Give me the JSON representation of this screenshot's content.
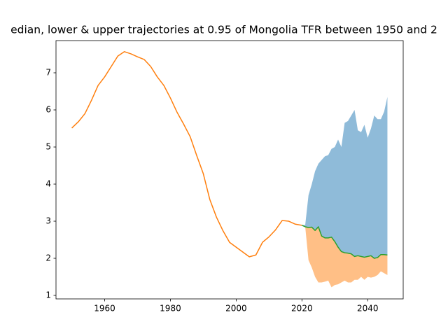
{
  "chart_data": {
    "type": "line",
    "title": "edian, lower & upper trajectories at 0.95 of Mongolia TFR between 1950 and 2",
    "x": [
      1950,
      1952,
      1954,
      1956,
      1958,
      1960,
      1962,
      1964,
      1966,
      1968,
      1970,
      1972,
      1974,
      1976,
      1978,
      1980,
      1982,
      1984,
      1986,
      1988,
      1990,
      1992,
      1994,
      1996,
      1998,
      2000,
      2002,
      2004,
      2006,
      2008,
      2010,
      2012,
      2014,
      2016,
      2018,
      2020,
      2021,
      2022,
      2023,
      2024,
      2025,
      2026,
      2027,
      2028,
      2029,
      2030,
      2031,
      2032,
      2033,
      2034,
      2035,
      2036,
      2037,
      2038,
      2039,
      2040,
      2041,
      2042,
      2043,
      2044,
      2045,
      2046
    ],
    "series": [
      {
        "color": "#1f77b4",
        "fill": true,
        "opacity": 0.5,
        "values": [
          null,
          null,
          null,
          null,
          null,
          null,
          null,
          null,
          null,
          null,
          null,
          null,
          null,
          null,
          null,
          null,
          null,
          null,
          null,
          null,
          null,
          null,
          null,
          null,
          null,
          null,
          null,
          null,
          null,
          null,
          null,
          null,
          null,
          null,
          null,
          2.89,
          2.9,
          3.7,
          4.0,
          4.35,
          4.55,
          4.65,
          4.75,
          4.78,
          4.95,
          5.0,
          5.2,
          5.0,
          5.65,
          5.7,
          5.85,
          6.0,
          5.45,
          5.4,
          5.6,
          5.25,
          5.5,
          5.85,
          5.75,
          5.75,
          5.95,
          6.35
        ]
      },
      {
        "color": "#ff7f0e",
        "fill": true,
        "opacity": 0.5,
        "values": [
          null,
          null,
          null,
          null,
          null,
          null,
          null,
          null,
          null,
          null,
          null,
          null,
          null,
          null,
          null,
          null,
          null,
          null,
          null,
          null,
          null,
          null,
          null,
          null,
          null,
          null,
          null,
          null,
          null,
          null,
          null,
          null,
          null,
          null,
          null,
          2.89,
          2.85,
          1.95,
          1.75,
          1.5,
          1.35,
          1.35,
          1.37,
          1.4,
          1.22,
          1.28,
          1.3,
          1.35,
          1.4,
          1.35,
          1.35,
          1.42,
          1.42,
          1.5,
          1.42,
          1.5,
          1.48,
          1.5,
          1.55,
          1.65,
          1.6,
          1.55
        ]
      },
      {
        "color": "#2ca02c",
        "values": [
          null,
          null,
          null,
          null,
          null,
          null,
          null,
          null,
          null,
          null,
          null,
          null,
          null,
          null,
          null,
          null,
          null,
          null,
          null,
          null,
          null,
          null,
          null,
          null,
          null,
          null,
          null,
          null,
          null,
          null,
          null,
          null,
          null,
          null,
          null,
          2.89,
          2.85,
          2.83,
          2.84,
          2.75,
          2.85,
          2.6,
          2.55,
          2.55,
          2.57,
          2.45,
          2.3,
          2.18,
          2.15,
          2.14,
          2.12,
          2.05,
          2.07,
          2.05,
          2.03,
          2.05,
          2.07,
          2.0,
          2.02,
          2.1,
          2.1,
          2.09
        ]
      },
      {
        "color": "#ff7f0e",
        "values": [
          5.51,
          5.68,
          5.9,
          6.26,
          6.66,
          6.89,
          7.17,
          7.45,
          7.57,
          7.51,
          7.43,
          7.36,
          7.17,
          6.89,
          6.66,
          6.32,
          5.94,
          5.62,
          5.28,
          4.77,
          4.28,
          3.58,
          3.11,
          2.74,
          2.43,
          2.3,
          2.17,
          2.04,
          2.09,
          2.43,
          2.58,
          2.77,
          3.02,
          3.0,
          2.92,
          2.89,
          null,
          null,
          null,
          null,
          null,
          null,
          null,
          null,
          null,
          null,
          null,
          null,
          null,
          null,
          null,
          null,
          null,
          null,
          null,
          null,
          null,
          null,
          null,
          null,
          null,
          null
        ]
      }
    ],
    "xlim": [
      1945.2,
      2050.8
    ],
    "ylim": [
      0.906,
      7.868
    ],
    "xticks": [
      1960,
      1980,
      2000,
      2020,
      2040
    ],
    "yticks": [
      1,
      2,
      3,
      4,
      5,
      6,
      7
    ]
  }
}
